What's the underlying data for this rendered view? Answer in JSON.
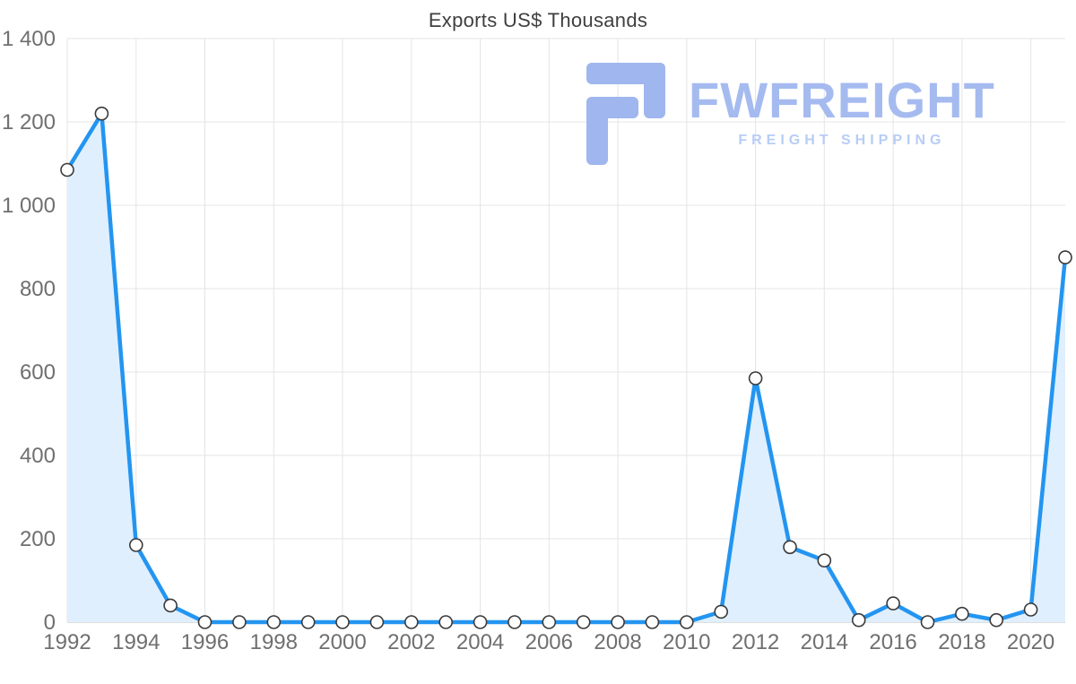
{
  "title": "Exports US$ Thousands",
  "watermark": {
    "brand": "FWFREIGHT",
    "tagline": "FREIGHT SHIPPING"
  },
  "chart_data": {
    "type": "line",
    "title": "Exports US$ Thousands",
    "xlabel": "",
    "ylabel": "",
    "x": [
      1992,
      1993,
      1994,
      1995,
      1996,
      1997,
      1998,
      1999,
      2000,
      2001,
      2002,
      2003,
      2004,
      2005,
      2006,
      2007,
      2008,
      2009,
      2010,
      2011,
      2012,
      2013,
      2014,
      2015,
      2016,
      2017,
      2018,
      2019,
      2020,
      2021
    ],
    "values": [
      1085,
      1220,
      185,
      40,
      0,
      0,
      0,
      0,
      0,
      0,
      0,
      0,
      0,
      0,
      0,
      0,
      0,
      0,
      0,
      25,
      585,
      180,
      148,
      5,
      45,
      0,
      20,
      5,
      30,
      875
    ],
    "ylim": [
      0,
      1400
    ],
    "ytick_step": 200,
    "ytick_labels": [
      "0",
      "200",
      "400",
      "600",
      "800",
      "1 000",
      "1 200",
      "1 400"
    ],
    "xtick_years": [
      1992,
      1994,
      1996,
      1998,
      2000,
      2002,
      2004,
      2006,
      2008,
      2010,
      2012,
      2014,
      2016,
      2018,
      2020
    ],
    "grid": true,
    "legend": "none",
    "area_fill": true,
    "colors": {
      "line": "#2395f1",
      "fill": "#e0effd",
      "marker_fill": "#ffffff",
      "marker_stroke": "#3a3a3a",
      "grid": "#e4e4e4",
      "axis": "#bdbdbd",
      "tick_text": "#6f6f6f",
      "title_text": "#3f3f3f",
      "watermark": "#9fb6ee"
    }
  }
}
